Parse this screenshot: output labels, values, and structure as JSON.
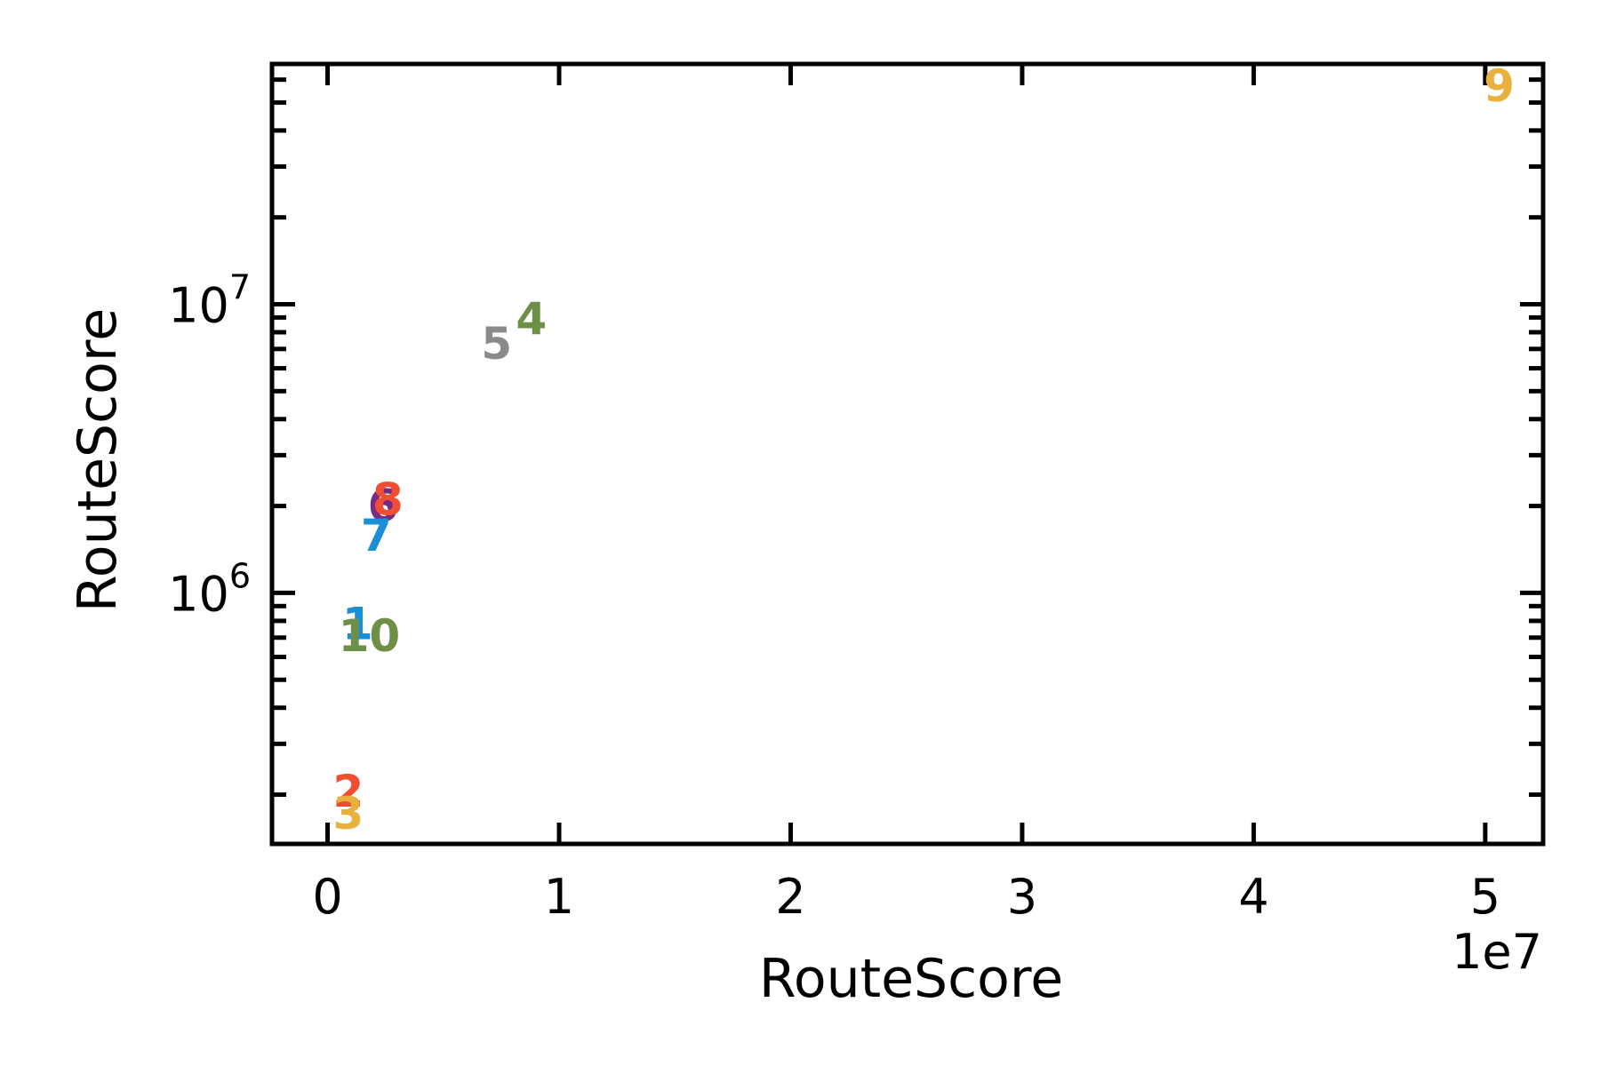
{
  "chart_data": {
    "type": "scatter",
    "title": "",
    "xlabel": "RouteScore",
    "ylabel": "RouteScore",
    "x_offset_label": "1e7",
    "x_scale": "linear",
    "y_scale": "log",
    "xlim": [
      -2400000,
      52500000
    ],
    "ylim": [
      135000,
      68000000
    ],
    "x_ticks": [
      {
        "value": 0,
        "label": "0"
      },
      {
        "value": 10000000,
        "label": "1"
      },
      {
        "value": 20000000,
        "label": "2"
      },
      {
        "value": 30000000,
        "label": "3"
      },
      {
        "value": 40000000,
        "label": "4"
      },
      {
        "value": 50000000,
        "label": "5"
      }
    ],
    "y_ticks": [
      {
        "value": 1000000,
        "base": "10",
        "exp": "6"
      },
      {
        "value": 10000000,
        "base": "10",
        "exp": "7"
      }
    ],
    "grid": false,
    "legend": "none",
    "points": [
      {
        "label": "1",
        "x": 1300000,
        "y": 780000,
        "color": "#1b8fd6"
      },
      {
        "label": "2",
        "x": 900000,
        "y": 205000,
        "color": "#f04e33"
      },
      {
        "label": "3",
        "x": 900000,
        "y": 172000,
        "color": "#e8b03c"
      },
      {
        "label": "4",
        "x": 8800000,
        "y": 8900000,
        "color": "#6d8f48"
      },
      {
        "label": "5",
        "x": 7300000,
        "y": 7300000,
        "color": "#8a8a8a"
      },
      {
        "label": "6",
        "x": 2400000,
        "y": 2000000,
        "color": "#7b2a84"
      },
      {
        "label": "7",
        "x": 2100000,
        "y": 1580000,
        "color": "#1b8fd6"
      },
      {
        "label": "8",
        "x": 2600000,
        "y": 2100000,
        "color": "#f04e33"
      },
      {
        "label": "9",
        "x": 50600000,
        "y": 57000000,
        "color": "#e8b03c"
      },
      {
        "label": "10",
        "x": 1800000,
        "y": 710000,
        "color": "#6d8f48"
      }
    ]
  }
}
